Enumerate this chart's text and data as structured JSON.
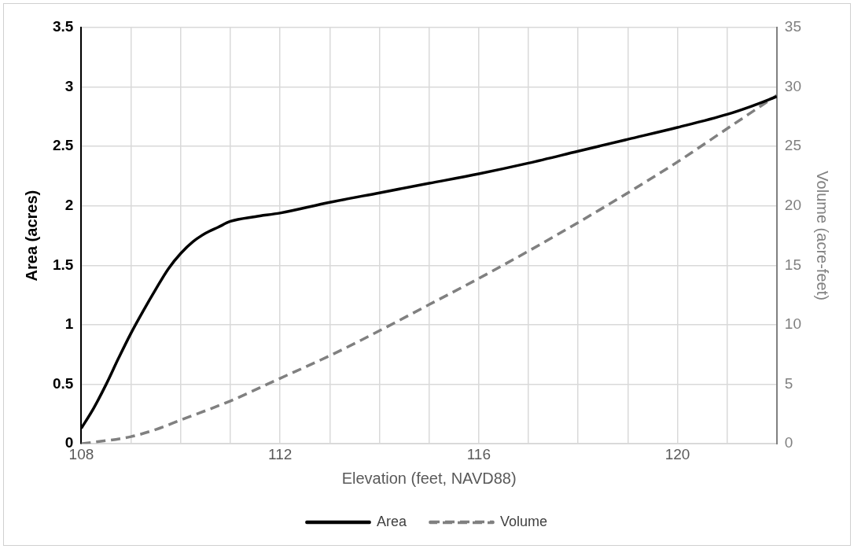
{
  "chart_data": {
    "type": "line",
    "xlabel": "Elevation (feet, NAVD88)",
    "ylabel": "Area (acres)",
    "y2label": "Volume (acre-feet)",
    "xlim": [
      108,
      122
    ],
    "xticks": [
      108,
      {
        "value": 109,
        "label": null
      },
      {
        "value": 110,
        "label": null
      },
      {
        "value": 111,
        "label": null
      },
      112,
      {
        "value": 113,
        "label": null
      },
      {
        "value": 114,
        "label": null
      },
      {
        "value": 115,
        "label": null
      },
      116,
      {
        "value": 117,
        "label": null
      },
      {
        "value": 118,
        "label": null
      },
      {
        "value": 119,
        "label": null
      },
      120,
      {
        "value": 121,
        "label": null
      },
      {
        "value": 122,
        "label": null
      }
    ],
    "ylim": [
      0,
      3.5
    ],
    "yticks": [
      0,
      0.5,
      1,
      1.5,
      2,
      2.5,
      3,
      3.5
    ],
    "y2lim": [
      0,
      35
    ],
    "y2ticks": [
      0,
      5,
      10,
      15,
      20,
      25,
      30,
      35
    ],
    "grid": true,
    "legend": "bottom",
    "marker": "none",
    "series": [
      {
        "name": "Area",
        "color": "#000000",
        "line_style": "solid",
        "x": [
          108,
          108.25,
          108.5,
          108.75,
          109,
          109.25,
          109.5,
          109.75,
          110,
          110.25,
          110.5,
          110.75,
          111,
          111.5,
          112,
          113,
          114,
          115,
          116,
          117,
          118,
          119,
          120,
          121,
          121.5,
          122
        ],
        "values": [
          0.13,
          0.3,
          0.5,
          0.72,
          0.93,
          1.12,
          1.3,
          1.47,
          1.6,
          1.7,
          1.77,
          1.82,
          1.87,
          1.91,
          1.94,
          2.03,
          2.11,
          2.19,
          2.27,
          2.36,
          2.46,
          2.56,
          2.66,
          2.77,
          2.84,
          2.92
        ]
      },
      {
        "name": "Volume",
        "color": "#808080",
        "line_style": "dashed",
        "axis": "y2",
        "x": [
          108,
          109,
          109.5,
          110,
          111,
          112,
          113,
          114,
          115,
          116,
          117,
          118,
          119,
          120,
          121,
          122
        ],
        "values": [
          0,
          0.6,
          1.2,
          2,
          3.6,
          5.5,
          7.4,
          9.5,
          11.7,
          13.9,
          16.2,
          18.6,
          21.1,
          23.7,
          26.5,
          29.3
        ]
      }
    ]
  }
}
